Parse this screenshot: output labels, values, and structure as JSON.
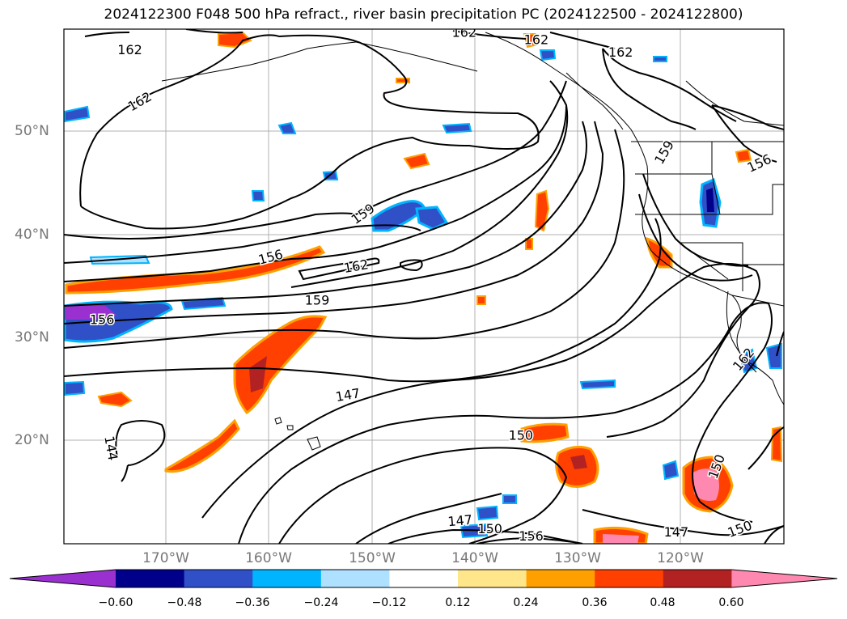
{
  "title": "2024122300 F048 500 hPa refract., river basin precipitation PC (2024122500 - 2024122800)",
  "lat_labels": [
    "50°N",
    "40°N",
    "30°N",
    "20°N"
  ],
  "lon_labels": [
    "170°W",
    "160°W",
    "150°W",
    "140°W",
    "130°W",
    "120°W"
  ],
  "colorbar": {
    "labels": [
      "−0.60",
      "−0.48",
      "−0.36",
      "−0.24",
      "−0.12",
      "0.12",
      "0.24",
      "0.36",
      "0.48",
      "0.60"
    ],
    "colors": [
      "#9b30d0",
      "#00008b",
      "#3050c8",
      "#00b4ff",
      "#aee0ff",
      "#ffffff",
      "#ffe68a",
      "#ffa000",
      "#ff4000",
      "#b22222",
      "#ff88b0"
    ]
  },
  "contour_labels": [
    {
      "text": "162",
      "lon": -173.5,
      "lat": 57.8,
      "rot": 0
    },
    {
      "text": "162",
      "lon": -172.5,
      "lat": 52.8,
      "rot": -30
    },
    {
      "text": "162",
      "lon": -141,
      "lat": 59.5,
      "rot": 0
    },
    {
      "text": "162",
      "lon": -134,
      "lat": 58.8,
      "rot": 0
    },
    {
      "text": "162",
      "lon": -125.8,
      "lat": 57.6,
      "rot": 0
    },
    {
      "text": "159",
      "lon": -121.5,
      "lat": 47.9,
      "rot": -60
    },
    {
      "text": "156",
      "lon": -112.3,
      "lat": 46.8,
      "rot": -25
    },
    {
      "text": "159",
      "lon": -150.8,
      "lat": 41.9,
      "rot": -35
    },
    {
      "text": "156",
      "lon": -159.8,
      "lat": 37.7,
      "rot": -15
    },
    {
      "text": "162",
      "lon": -151.5,
      "lat": 36.8,
      "rot": -10
    },
    {
      "text": "159",
      "lon": -155.3,
      "lat": 33.5,
      "rot": 0
    },
    {
      "text": "156",
      "lon": -176.2,
      "lat": 31.6,
      "rot": 0
    },
    {
      "text": "147",
      "lon": -152.3,
      "lat": 24.3,
      "rot": -10
    },
    {
      "text": "150",
      "lon": -135.5,
      "lat": 20.4,
      "rot": 0
    },
    {
      "text": "144",
      "lon": -175.4,
      "lat": 19.2,
      "rot": 80
    },
    {
      "text": "150",
      "lon": -116.4,
      "lat": 17.4,
      "rot": -70
    },
    {
      "text": "147",
      "lon": -141.4,
      "lat": 12.1,
      "rot": -5
    },
    {
      "text": "150",
      "lon": -138.5,
      "lat": 11.3,
      "rot": 0
    },
    {
      "text": "156",
      "lon": -134.5,
      "lat": 10.6,
      "rot": 0
    },
    {
      "text": "147",
      "lon": -120.4,
      "lat": 11.0,
      "rot": 0
    },
    {
      "text": "150",
      "lon": -114.2,
      "lat": 11.3,
      "rot": -20
    },
    {
      "text": "162",
      "lon": -113.8,
      "lat": 27.8,
      "rot": -50
    }
  ]
}
